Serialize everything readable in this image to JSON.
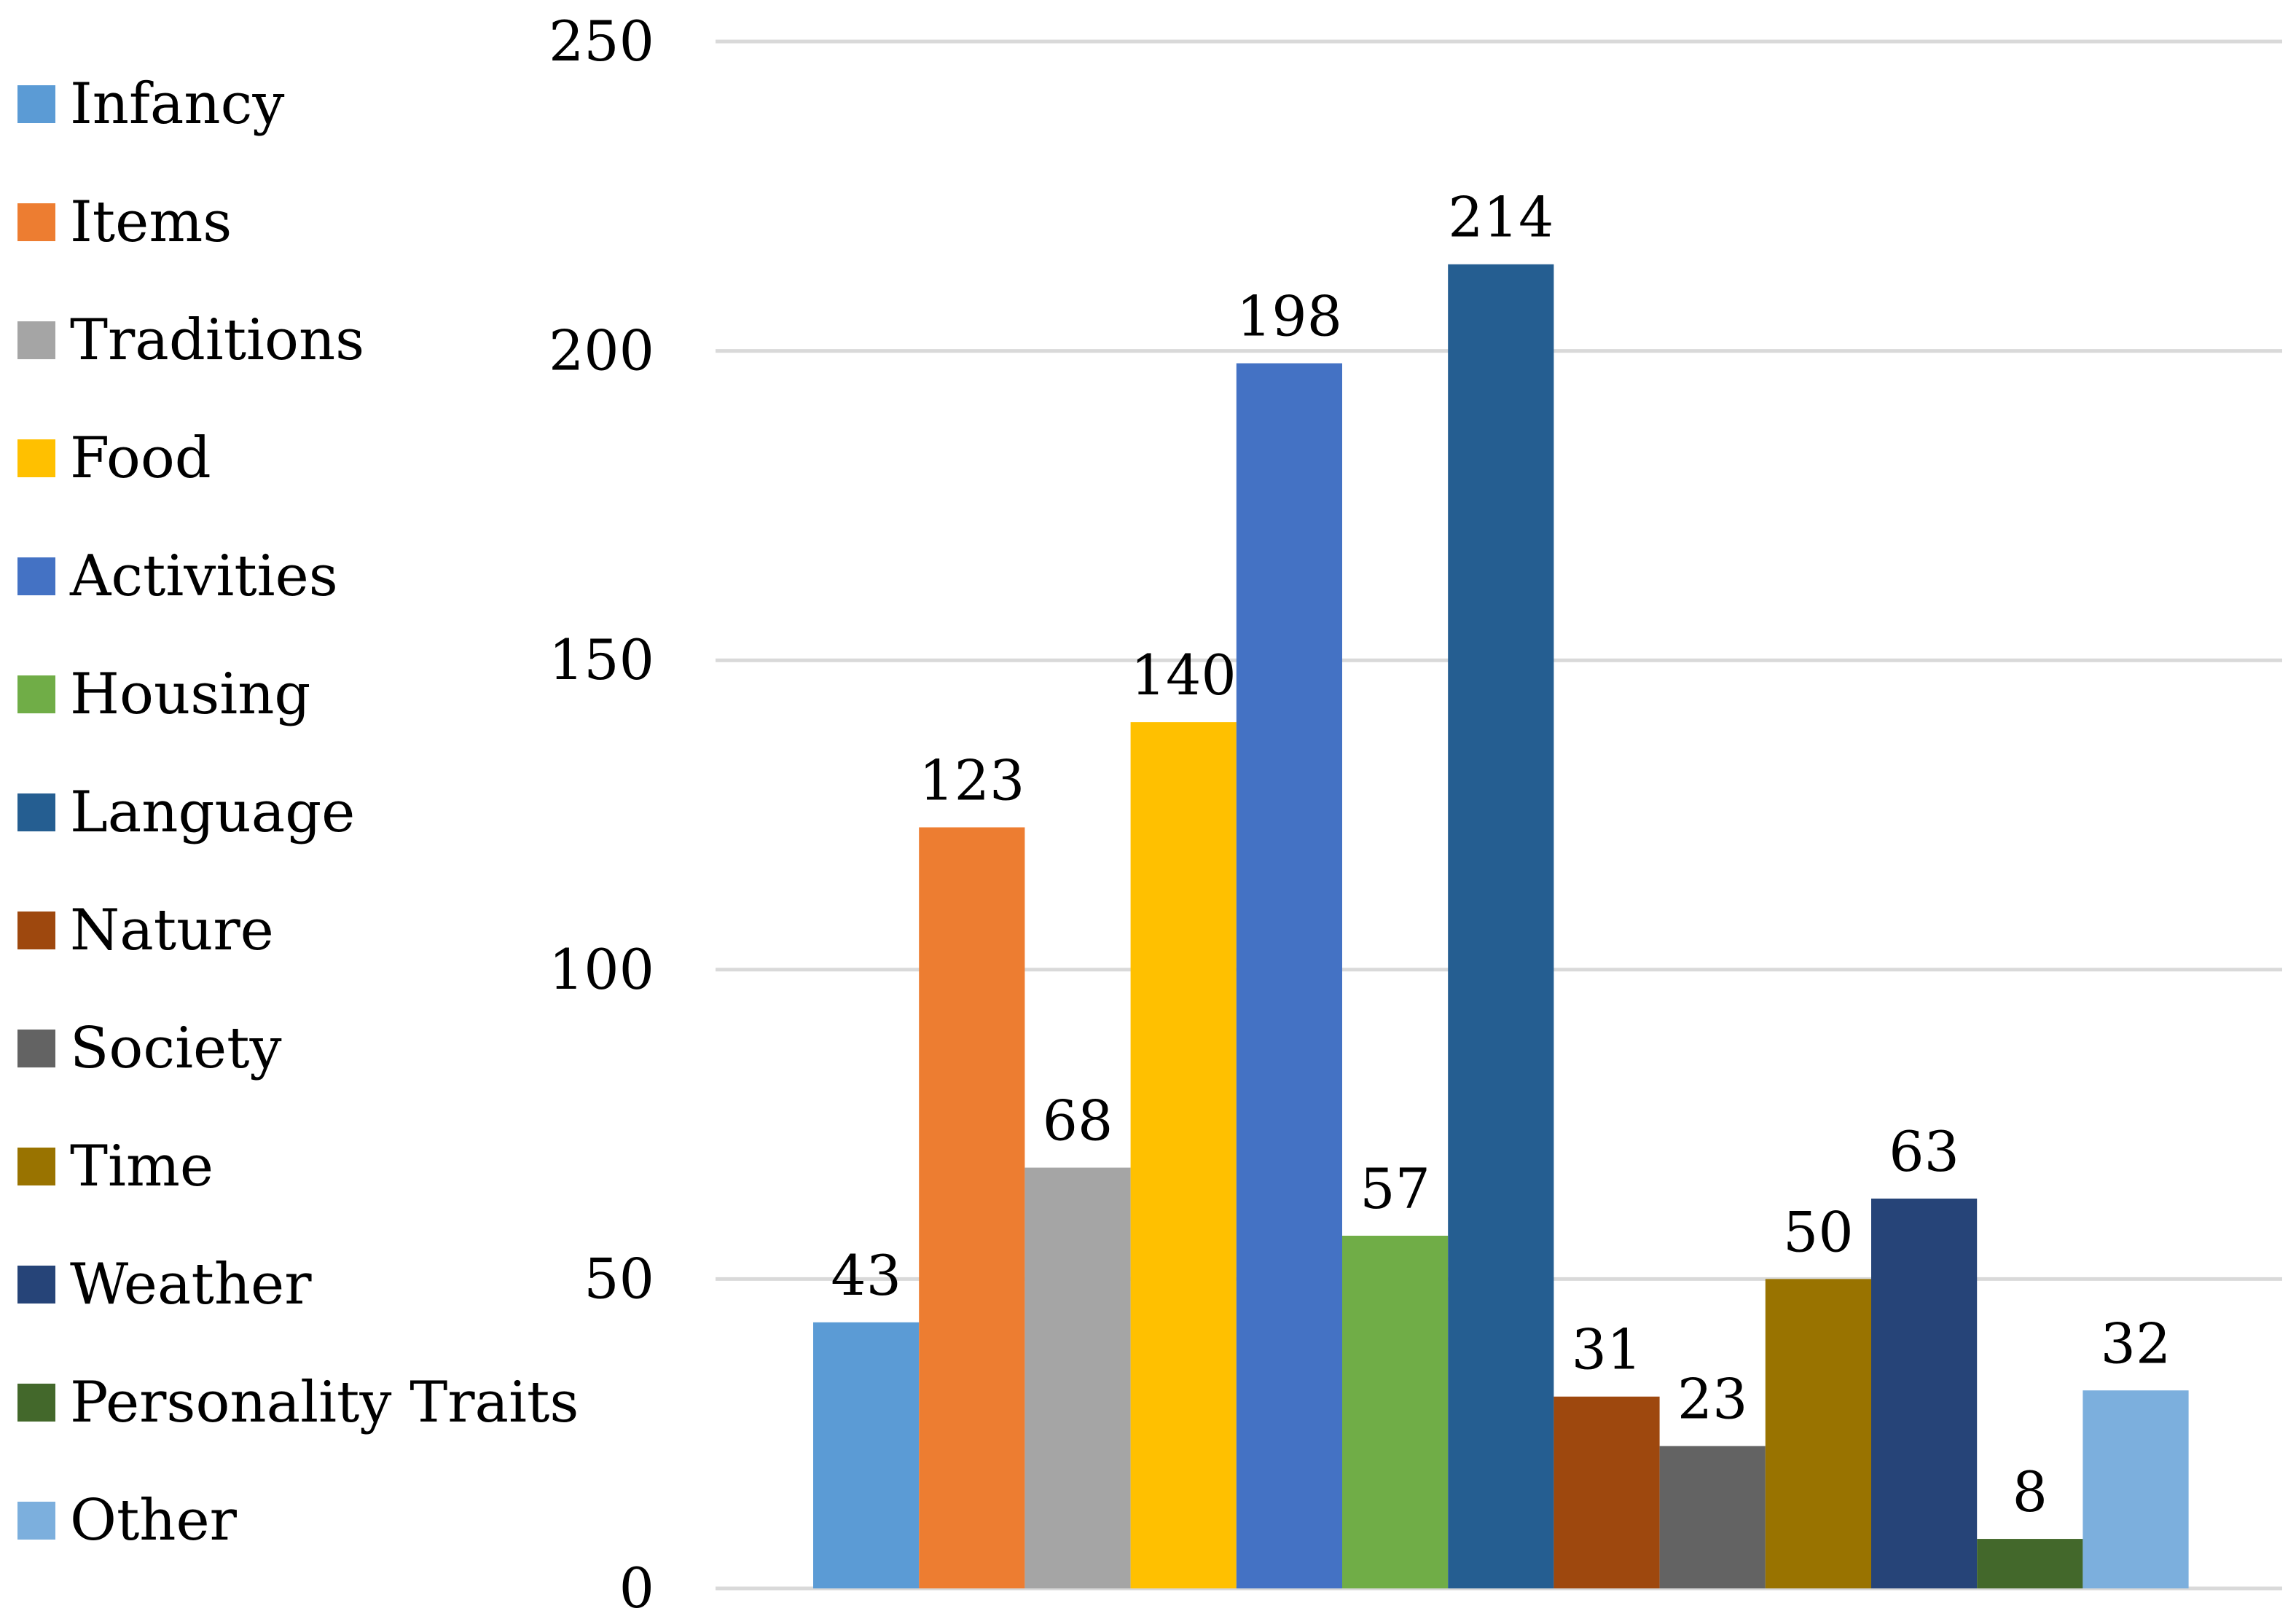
{
  "chart_data": {
    "type": "bar",
    "title": "",
    "xlabel": "",
    "ylabel": "",
    "ylim": [
      0,
      250
    ],
    "yticks": [
      0,
      50,
      100,
      150,
      200,
      250
    ],
    "grid": true,
    "legend_position": "left",
    "categories": [
      "Infancy",
      "Items",
      "Traditions",
      "Food",
      "Activities",
      "Housing",
      "Language",
      "Nature",
      "Society",
      "Time",
      "Weather",
      "Personality Traits",
      "Other"
    ],
    "values": [
      43,
      123,
      68,
      140,
      198,
      57,
      214,
      31,
      23,
      50,
      63,
      8,
      32
    ],
    "colors": [
      "#5B9BD5",
      "#ED7D31",
      "#A5A5A5",
      "#FFC000",
      "#4472C4",
      "#70AD47",
      "#255E91",
      "#9E480E",
      "#636363",
      "#997300",
      "#264478",
      "#43682B",
      "#7CAFDD"
    ],
    "gridline_color": "#D9D9D9"
  }
}
